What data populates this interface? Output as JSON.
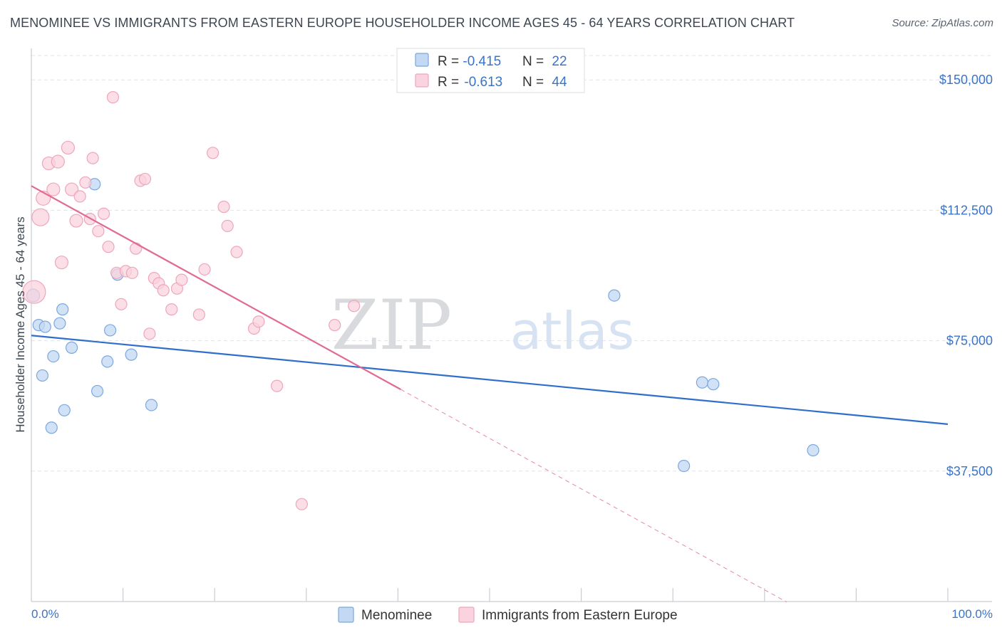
{
  "chart_data": {
    "type": "scatter",
    "title": "MENOMINEE VS IMMIGRANTS FROM EASTERN EUROPE HOUSEHOLDER INCOME AGES 45 - 64 YEARS CORRELATION CHART",
    "source": "Source: ZipAtlas.com",
    "watermark": {
      "zip": "ZIP",
      "atlas": "atlas"
    },
    "ylabel": "Householder Income Ages 45 - 64 years",
    "xlabel": "",
    "xlim": [
      0,
      100
    ],
    "ylim": [
      0,
      157000
    ],
    "x_tick_labels": {
      "min": "0.0%",
      "max": "100.0%"
    },
    "x_minor_ticks": [
      10,
      20,
      30,
      40,
      50,
      60,
      70,
      80,
      90,
      100
    ],
    "y_ticks": [
      {
        "value": 37500,
        "label": "$37,500"
      },
      {
        "value": 75000,
        "label": "$75,000"
      },
      {
        "value": 112500,
        "label": "$112,500"
      },
      {
        "value": 150000,
        "label": "$150,000"
      }
    ],
    "legend_stats": [
      {
        "r_label": "R = ",
        "r_value": "-0.415",
        "n_label": "N = ",
        "n_value": "22"
      },
      {
        "r_label": "R = ",
        "r_value": "-0.613",
        "n_label": "N = ",
        "n_value": "44"
      }
    ],
    "series": [
      {
        "name": "Menominee",
        "color": "#7ba7df",
        "fill": "#c3d8f3",
        "trend_color": "#2f6fcb",
        "trend": {
          "x0": 0,
          "y0": 76500,
          "x1": 100,
          "y1": 51000
        },
        "points": [
          {
            "x": 0.2,
            "y": 88000,
            "s": 9
          },
          {
            "x": 0.8,
            "y": 79500,
            "s": 8
          },
          {
            "x": 1.5,
            "y": 79000,
            "s": 8
          },
          {
            "x": 1.2,
            "y": 65000,
            "s": 8
          },
          {
            "x": 2.4,
            "y": 70500,
            "s": 8
          },
          {
            "x": 3.1,
            "y": 80000,
            "s": 8
          },
          {
            "x": 3.4,
            "y": 84000,
            "s": 8
          },
          {
            "x": 4.4,
            "y": 73000,
            "s": 8
          },
          {
            "x": 3.6,
            "y": 55000,
            "s": 8
          },
          {
            "x": 2.2,
            "y": 50000,
            "s": 8
          },
          {
            "x": 6.9,
            "y": 120000,
            "s": 8
          },
          {
            "x": 7.2,
            "y": 60500,
            "s": 8
          },
          {
            "x": 8.3,
            "y": 69000,
            "s": 8
          },
          {
            "x": 8.6,
            "y": 78000,
            "s": 8
          },
          {
            "x": 9.4,
            "y": 94000,
            "s": 8
          },
          {
            "x": 10.9,
            "y": 71000,
            "s": 8
          },
          {
            "x": 13.1,
            "y": 56500,
            "s": 8
          },
          {
            "x": 63.6,
            "y": 88000,
            "s": 8
          },
          {
            "x": 73.2,
            "y": 63000,
            "s": 8
          },
          {
            "x": 74.4,
            "y": 62500,
            "s": 8
          },
          {
            "x": 71.2,
            "y": 39000,
            "s": 8
          },
          {
            "x": 85.3,
            "y": 43500,
            "s": 8
          }
        ]
      },
      {
        "name": "Immigrants from Eastern Europe",
        "color": "#eea6bd",
        "fill": "#f9d3de",
        "trend_color": "#e06a92",
        "trend": {
          "x0": 0,
          "y0": 119500,
          "x1": 40.3,
          "y1": 61000,
          "x_dash_end": 82.4
        },
        "points": [
          {
            "x": 0.3,
            "y": 89000,
            "s": 16
          },
          {
            "x": 1.0,
            "y": 110500,
            "s": 12
          },
          {
            "x": 1.3,
            "y": 116000,
            "s": 10
          },
          {
            "x": 1.9,
            "y": 126000,
            "s": 9
          },
          {
            "x": 2.4,
            "y": 118500,
            "s": 9
          },
          {
            "x": 2.9,
            "y": 126500,
            "s": 9
          },
          {
            "x": 3.3,
            "y": 97500,
            "s": 9
          },
          {
            "x": 4.0,
            "y": 130500,
            "s": 9
          },
          {
            "x": 4.4,
            "y": 118500,
            "s": 9
          },
          {
            "x": 4.9,
            "y": 109500,
            "s": 9
          },
          {
            "x": 5.3,
            "y": 116500,
            "s": 8
          },
          {
            "x": 5.9,
            "y": 120500,
            "s": 8
          },
          {
            "x": 6.4,
            "y": 110000,
            "s": 8
          },
          {
            "x": 6.7,
            "y": 127500,
            "s": 8
          },
          {
            "x": 7.3,
            "y": 106500,
            "s": 8
          },
          {
            "x": 7.9,
            "y": 111500,
            "s": 8
          },
          {
            "x": 8.4,
            "y": 102000,
            "s": 8
          },
          {
            "x": 8.9,
            "y": 145000,
            "s": 8
          },
          {
            "x": 9.3,
            "y": 94500,
            "s": 8
          },
          {
            "x": 9.8,
            "y": 85500,
            "s": 8
          },
          {
            "x": 10.3,
            "y": 95000,
            "s": 8
          },
          {
            "x": 11.0,
            "y": 94500,
            "s": 8
          },
          {
            "x": 11.4,
            "y": 101500,
            "s": 8
          },
          {
            "x": 11.9,
            "y": 121000,
            "s": 8
          },
          {
            "x": 12.4,
            "y": 121500,
            "s": 8
          },
          {
            "x": 12.9,
            "y": 77000,
            "s": 8
          },
          {
            "x": 13.4,
            "y": 93000,
            "s": 8
          },
          {
            "x": 13.9,
            "y": 91500,
            "s": 8
          },
          {
            "x": 14.4,
            "y": 89500,
            "s": 8
          },
          {
            "x": 15.3,
            "y": 84000,
            "s": 8
          },
          {
            "x": 15.9,
            "y": 90000,
            "s": 8
          },
          {
            "x": 16.4,
            "y": 92500,
            "s": 8
          },
          {
            "x": 18.3,
            "y": 82500,
            "s": 8
          },
          {
            "x": 18.9,
            "y": 95500,
            "s": 8
          },
          {
            "x": 19.8,
            "y": 129000,
            "s": 8
          },
          {
            "x": 21.0,
            "y": 113500,
            "s": 8
          },
          {
            "x": 21.4,
            "y": 108000,
            "s": 8
          },
          {
            "x": 22.4,
            "y": 100500,
            "s": 8
          },
          {
            "x": 24.3,
            "y": 78500,
            "s": 8
          },
          {
            "x": 24.8,
            "y": 80500,
            "s": 8
          },
          {
            "x": 26.8,
            "y": 62000,
            "s": 8
          },
          {
            "x": 29.5,
            "y": 28000,
            "s": 8
          },
          {
            "x": 33.1,
            "y": 79500,
            "s": 8
          },
          {
            "x": 35.2,
            "y": 85000,
            "s": 8
          }
        ]
      }
    ]
  }
}
